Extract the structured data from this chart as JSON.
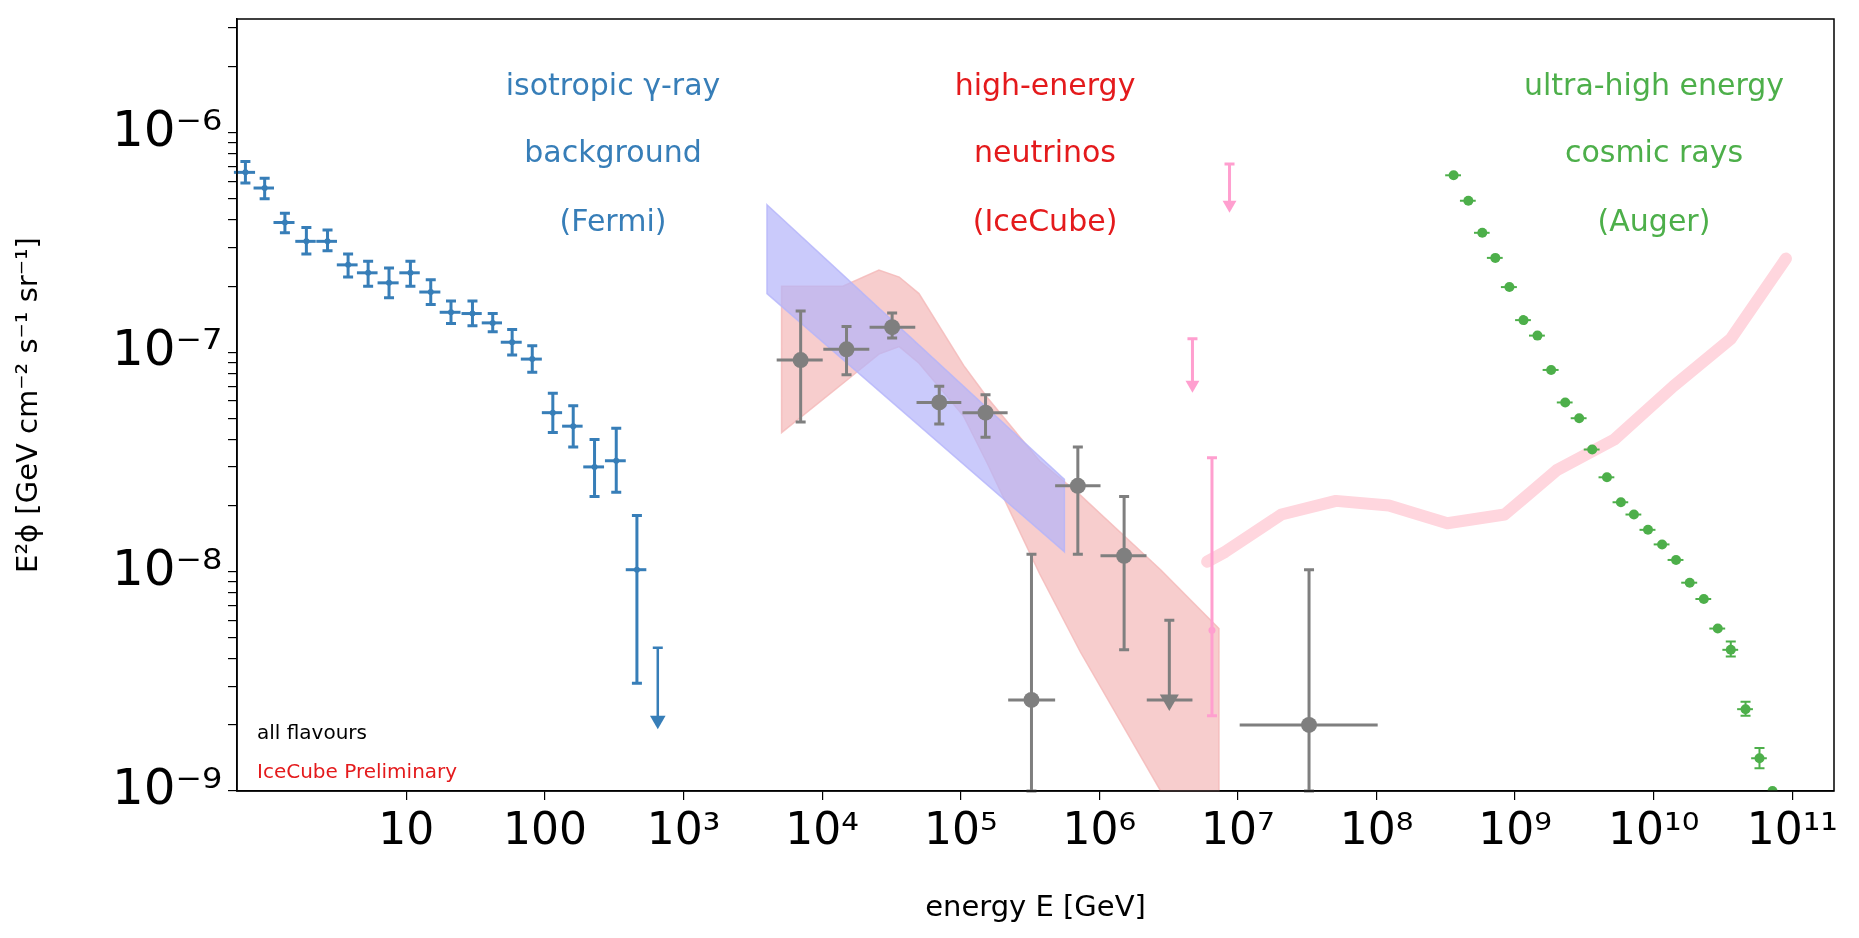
{
  "chart_data": {
    "type": "scatter",
    "xlabel": "energy E [GeV]",
    "ylabel": "E²ϕ [GeV cm⁻² s⁻¹ sr⁻¹]",
    "log": "xy",
    "xlim": [
      0.6,
      200000000000.0
    ],
    "ylim": [
      1e-09,
      3.3e-06
    ],
    "xticks": [
      10,
      100,
      {
        "value": 1000,
        "label": "10³"
      },
      {
        "value": 10000.0,
        "label": "10⁴"
      },
      {
        "value": 100000.0,
        "label": "10⁵"
      },
      {
        "value": 1000000.0,
        "label": "10⁶"
      },
      {
        "value": 10000000.0,
        "label": "10⁷"
      },
      {
        "value": 100000000.0,
        "label": "10⁸"
      },
      {
        "value": 1000000000.0,
        "label": "10⁹"
      },
      {
        "value": 10000000000.0,
        "label": "10¹⁰"
      },
      {
        "value": 100000000000.0,
        "label": "10¹¹"
      }
    ],
    "yticks": [
      {
        "value": 1e-09,
        "label": "10⁻⁹"
      },
      {
        "value": 2e-09,
        "label": null
      },
      {
        "value": 3e-09,
        "label": null
      },
      {
        "value": 4e-09,
        "label": null
      },
      {
        "value": 5e-09,
        "label": null
      },
      {
        "value": 6e-09,
        "label": null
      },
      {
        "value": 7e-09,
        "label": null
      },
      {
        "value": 8e-09,
        "label": null
      },
      {
        "value": 9e-09,
        "label": null
      },
      {
        "value": 1e-08,
        "label": "10⁻⁸"
      },
      {
        "value": 2e-08,
        "label": null
      },
      {
        "value": 3e-08,
        "label": null
      },
      {
        "value": 4e-08,
        "label": null
      },
      {
        "value": 5e-08,
        "label": null
      },
      {
        "value": 6e-08,
        "label": null
      },
      {
        "value": 7e-08,
        "label": null
      },
      {
        "value": 8e-08,
        "label": null
      },
      {
        "value": 9e-08,
        "label": null
      },
      {
        "value": 1e-07,
        "label": "10⁻⁷"
      },
      {
        "value": 2e-07,
        "label": null
      },
      {
        "value": 3e-07,
        "label": null
      },
      {
        "value": 4e-07,
        "label": null
      },
      {
        "value": 5e-07,
        "label": null
      },
      {
        "value": 6e-07,
        "label": null
      },
      {
        "value": 7e-07,
        "label": null
      },
      {
        "value": 8e-07,
        "label": null
      },
      {
        "value": 9e-07,
        "label": null
      },
      {
        "value": 1e-06,
        "label": "10⁻⁶"
      },
      {
        "value": 2e-06,
        "label": null
      },
      {
        "value": 3e-06,
        "label": null
      }
    ],
    "annotations": [
      "isotropic γ-ray",
      "background",
      "(Fermi)",
      "high-energy",
      "neutrinos",
      "(IceCube)",
      "ultra-high energy",
      "cosmic rays",
      "(Auger)",
      "all flavours",
      "IceCube Preliminary"
    ],
    "series": [
      {
        "type": "area",
        "color": "#f4b8b8",
        "x": [
          5100,
          14100,
          25700,
          36000,
          50000,
          105000,
          156000,
          370000,
          730000,
          2770000,
          7300000
        ],
        "values": [
          null,
          null,
          null,
          null,
          null,
          null,
          null,
          null,
          null,
          null,
          null
        ],
        "upper": [
          2e-07,
          2e-07,
          2.37e-07,
          2.2e-07,
          1.85e-07,
          8.7e-08,
          6.2e-08,
          3.2e-08,
          2.23e-08,
          1.02e-08,
          5.5e-09
        ],
        "lower": [
          4.3e-08,
          7.2e-08,
          9.8e-08,
          1.06e-07,
          8.9e-08,
          5.1e-08,
          3.1e-08,
          9.8e-09,
          4.3e-09,
          1e-09,
          1e-09
        ]
      },
      {
        "type": "area",
        "color": "#b4b4fa",
        "x": [
          4000,
          560000
        ],
        "values": [
          null,
          null
        ],
        "upper": [
          4.7e-07,
          2.63e-08
        ],
        "lower": [
          1.85e-07,
          1.23e-08
        ]
      },
      {
        "type": "line",
        "color": "#ffd6de",
        "marker": "none",
        "x": [
          6000000.0,
          8100000.0,
          20600000.0,
          51000000.0,
          123000000.0,
          324000000.0,
          840000000.0,
          2000000000.0,
          5200000000.0,
          13900000000.0,
          36000000000.0,
          90000000000.0
        ],
        "values": [
          1.11e-08,
          1.23e-08,
          1.82e-08,
          2.1e-08,
          2e-08,
          1.66e-08,
          1.82e-08,
          2.9e-08,
          4e-08,
          7e-08,
          1.15e-07,
          2.67e-07
        ]
      },
      {
        "color": "#377eb8",
        "marker": "circle",
        "x": [
          0.69,
          0.95,
          1.33,
          1.9,
          2.7,
          3.8,
          5.3,
          7.5,
          10.7,
          15,
          21,
          30,
          42,
          58,
          81,
          114,
          160,
          228,
          327,
          461
        ],
        "values": [
          6.6e-07,
          5.6e-07,
          3.9e-07,
          3.2e-07,
          3.2e-07,
          2.5e-07,
          2.3e-07,
          2.07e-07,
          2.3e-07,
          1.88e-07,
          1.52e-07,
          1.5e-07,
          1.36e-07,
          1.11e-07,
          9.3e-08,
          5.3e-08,
          4.6e-08,
          3e-08,
          3.2e-08,
          1.02e-08
        ],
        "errors": [
          [
            5.9e-07,
            7.4e-07
          ],
          [
            5e-07,
            6.2e-07
          ],
          [
            3.5e-07,
            4.3e-07
          ],
          [
            2.8e-07,
            3.7e-07
          ],
          [
            2.9e-07,
            3.6e-07
          ],
          [
            2.2e-07,
            2.8e-07
          ],
          [
            2e-07,
            2.6e-07
          ],
          [
            1.77e-07,
            2.42e-07
          ],
          [
            2e-07,
            2.6e-07
          ],
          [
            1.65e-07,
            2.14e-07
          ],
          [
            1.35e-07,
            1.71e-07
          ],
          [
            1.32e-07,
            1.71e-07
          ],
          [
            1.24e-07,
            1.5e-07
          ],
          [
            9.7e-08,
            1.27e-07
          ],
          [
            8.1e-08,
            1.07e-07
          ],
          [
            4.3e-08,
            6.5e-08
          ],
          [
            3.7e-08,
            5.7e-08
          ],
          [
            2.2e-08,
            4e-08
          ],
          [
            2.3e-08,
            4.5e-08
          ],
          [
            3.1e-09,
            1.8e-08
          ]
        ],
        "xerrors": [
          0.12,
          0.16,
          0.23,
          0.32,
          0.46,
          0.65,
          0.9,
          1.3,
          1.8,
          2.6,
          3.6,
          5,
          7,
          10,
          14,
          19,
          27,
          39,
          56,
          78
        ]
      },
      {
        "color": "#377eb8",
        "marker": "triangle",
        "x": [
          652
        ],
        "values": [
          2.1e-09
        ],
        "errors": [
          [
            2.1e-09,
            4.5e-09
          ]
        ]
      },
      {
        "color": "#7f7f7f",
        "marker": "circle",
        "x": [
          7000,
          15000,
          32000,
          70000,
          151000,
          324000,
          700000,
          1510000,
          32600000
        ],
        "values": [
          9.2e-08,
          1.03e-07,
          1.3e-07,
          5.9e-08,
          5.3e-08,
          2.6e-09,
          2.46e-08,
          1.18e-08,
          2e-09
        ],
        "errors": [
          [
            4.8e-08,
            1.54e-07
          ],
          [
            7.9e-08,
            1.31e-07
          ],
          [
            1.16e-07,
            1.51e-07
          ],
          [
            4.7e-08,
            7e-08
          ],
          [
            4.1e-08,
            6.4e-08
          ],
          [
            1e-09,
            1.2e-08
          ],
          [
            1.2e-08,
            3.7e-08
          ],
          [
            4.4e-09,
            2.2e-08
          ],
          [
            1e-09,
            1.02e-08
          ]
        ],
        "xerrors": [
          [
            4700,
            10100
          ],
          [
            10200,
            21900
          ],
          [
            22000,
            47000
          ],
          [
            48000,
            101000
          ],
          [
            103000,
            218000
          ],
          [
            220000,
            480000
          ],
          [
            480000,
            1020000
          ],
          [
            1020000,
            2190000
          ],
          [
            10300000,
            102000000
          ]
        ]
      },
      {
        "color": "#7f7f7f",
        "marker": "triangle",
        "x": [
          3200000
        ],
        "values": [
          2.6e-09
        ],
        "errors": [
          [
            2.6e-09,
            6e-09
          ]
        ],
        "xerrors": [
          [
            2200000,
            4700000
          ]
        ]
      },
      {
        "color": "#ff9fcf",
        "marker": "triangle",
        "x": [
          4700000,
          8700000
        ],
        "values": [
          7.1e-08,
          4.7e-07
        ],
        "errors": [
          [
            7.1e-08,
            1.15e-07
          ],
          [
            4.7e-07,
            7.2e-07
          ]
        ]
      },
      {
        "color": "#ff9fcf",
        "marker": "circle",
        "x": [
          6500000
        ],
        "values": [
          5.4e-09
        ],
        "errors": [
          [
            2.2e-09,
            3.3e-08
          ]
        ]
      },
      {
        "color": "#4daf4a",
        "marker": "circle",
        "x": [
          360000000.0,
          460000000.0,
          580000000.0,
          720000000.0,
          910000000.0,
          1150000000.0,
          1450000000.0,
          1820000000.0,
          2300000000.0,
          2900000000.0,
          3600000000.0,
          4600000000.0,
          5800000000.0,
          7200000000.0,
          9100000000.0,
          11500000000.0,
          14500000000.0,
          18200000000.0,
          23000000000.0,
          29000000000.0,
          36000000000.0,
          46000000000.0,
          58000000000.0,
          72000000000.0
        ],
        "values": [
          6.4e-07,
          4.9e-07,
          3.5e-07,
          2.69e-07,
          1.98e-07,
          1.4e-07,
          1.19e-07,
          8.3e-08,
          5.9e-08,
          5e-08,
          3.6e-08,
          2.69e-08,
          2.07e-08,
          1.82e-08,
          1.55e-08,
          1.33e-08,
          1.13e-08,
          8.9e-09,
          7.5e-09,
          5.5e-09,
          4.4e-09,
          2.36e-09,
          1.41e-09,
          1e-09
        ],
        "errors": [
          null,
          null,
          null,
          null,
          null,
          null,
          null,
          null,
          null,
          null,
          null,
          null,
          null,
          null,
          null,
          null,
          null,
          null,
          null,
          null,
          [
            4.1e-09,
            4.8e-09
          ],
          [
            2.2e-09,
            2.55e-09
          ],
          [
            1.27e-09,
            1.57e-09
          ],
          null
        ],
        "xerrors": [
          47000000.0,
          60000000.0,
          75000000.0,
          94000000.0,
          120000000.0,
          150000000.0,
          190000000.0,
          240000000.0,
          300000000.0,
          380000000.0,
          470000000.0,
          600000000.0,
          750000000.0,
          940000000.0,
          1200000000.0,
          1500000000.0,
          1900000000.0,
          2400000000.0,
          3000000000.0,
          3800000000.0,
          4700000000.0,
          6000000000.0,
          7500000000.0,
          null
        ]
      }
    ]
  }
}
